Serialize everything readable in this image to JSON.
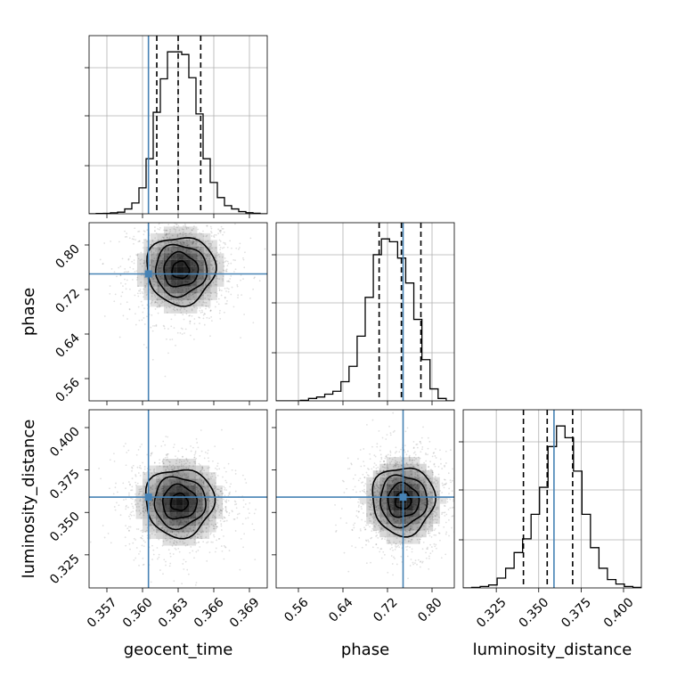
{
  "colors": {
    "truth": "#4682b4",
    "contour": "#000000",
    "grid": "#b0b0b0",
    "hist": "#000000"
  },
  "chart_data": {
    "type": "corner",
    "parameters": [
      "geocent_time",
      "phase",
      "luminosity_distance"
    ],
    "truths": {
      "geocent_time": 0.3605,
      "phase": 0.748,
      "luminosity_distance": 0.359
    },
    "ranges": {
      "geocent_time": [
        0.3555,
        0.3705
      ],
      "phase": [
        0.52,
        0.84
      ],
      "luminosity_distance": [
        0.3055,
        0.4105
      ]
    },
    "ticks": {
      "geocent_time": {
        "values": [
          0.357,
          0.36,
          0.363,
          0.366,
          0.369
        ],
        "labels": [
          "0.357",
          "0.360",
          "0.363",
          "0.366",
          "0.369"
        ]
      },
      "phase": {
        "values": [
          0.56,
          0.64,
          0.72,
          0.8
        ],
        "labels": [
          "0.56",
          "0.64",
          "0.72",
          "0.80"
        ]
      },
      "luminosity_distance": {
        "values": [
          0.325,
          0.35,
          0.375,
          0.4
        ],
        "labels": [
          "0.325",
          "0.350",
          "0.375",
          "0.400"
        ]
      }
    },
    "histograms": [
      {
        "parameter": "geocent_time",
        "bin_edges_range": [
          0.3555,
          0.3705
        ],
        "counts": [
          0,
          0.5,
          0.8,
          1.8,
          3,
          9,
          20,
          48,
          102,
          188,
          250,
          300,
          300,
          295,
          252,
          185,
          102,
          58,
          30,
          15,
          9,
          4,
          2,
          1,
          0
        ],
        "quantiles": [
          0.3612,
          0.363,
          0.3649
        ],
        "truth": 0.3605
      },
      {
        "parameter": "phase",
        "bin_edges_range": [
          0.52,
          0.84
        ],
        "counts": [
          0,
          0,
          0,
          1,
          5,
          8,
          14,
          20,
          40,
          72,
          135,
          216,
          305,
          338,
          332,
          298,
          246,
          170,
          86,
          25,
          5,
          0
        ],
        "quantiles": [
          0.705,
          0.745,
          0.78
        ],
        "truth": 0.748
      },
      {
        "parameter": "luminosity_distance",
        "bin_edges_range": [
          0.3055,
          0.4105
        ],
        "counts": [
          0,
          1,
          3,
          6,
          20,
          40,
          72,
          100,
          150,
          205,
          288,
          330,
          306,
          238,
          150,
          82,
          40,
          17,
          8,
          3,
          1
        ],
        "quantiles": [
          0.341,
          0.355,
          0.37
        ],
        "truth": 0.359
      }
    ],
    "density_2d": [
      {
        "x": "geocent_time",
        "y": "phase",
        "center": [
          0.3632,
          0.755
        ],
        "sigma": [
          0.0018,
          0.038
        ],
        "contour_levels": [
          0.4,
          0.8,
          1.2,
          1.6
        ]
      },
      {
        "x": "geocent_time",
        "y": "luminosity_distance",
        "center": [
          0.3631,
          0.356
        ],
        "sigma": [
          0.0018,
          0.0125
        ],
        "contour_levels": [
          0.4,
          0.8,
          1.2,
          1.6
        ]
      },
      {
        "x": "phase",
        "y": "luminosity_distance",
        "center": [
          0.748,
          0.357
        ],
        "sigma": [
          0.035,
          0.0125
        ],
        "contour_levels": [
          0.4,
          0.8,
          1.2,
          1.6
        ]
      }
    ],
    "xlabels": [
      "geocent_time",
      "phase",
      "luminosity_distance"
    ],
    "ylabels": [
      "",
      "phase",
      "luminosity_distance"
    ],
    "grid": true
  }
}
